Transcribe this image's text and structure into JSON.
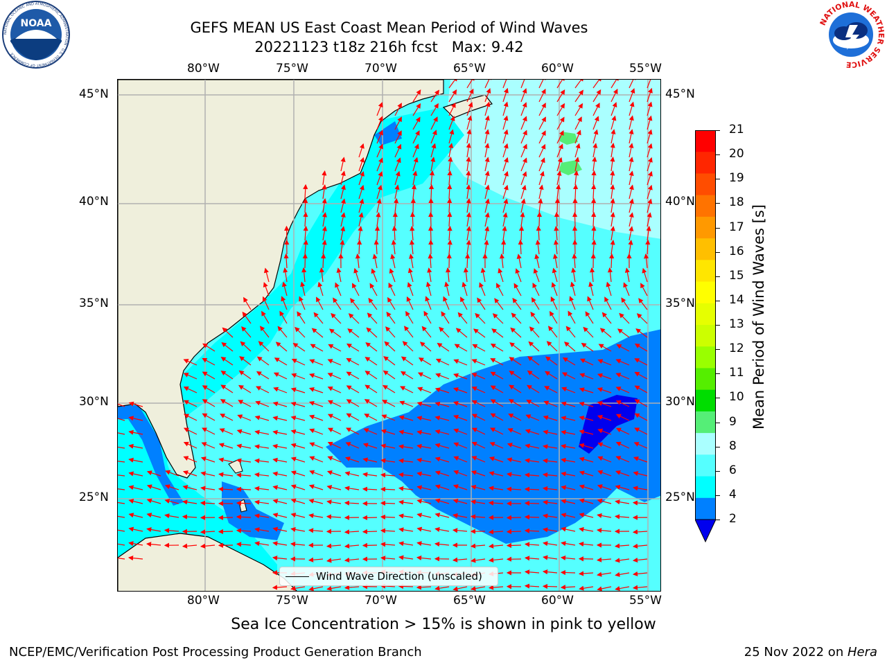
{
  "header": {
    "title_line1": "GEFS MEAN US East Coast Mean Period of Wind Waves",
    "title_line2": "20221123 t18z 216h fcst   Max: 9.42"
  },
  "logos": {
    "left": "NOAA",
    "left_ring_text": "NATIONAL OCEANIC AND ATMOSPHERIC ADMINISTRATION · U.S. DEPARTMENT OF COMMERCE",
    "right_ring_text": "NATIONAL WEATHER SERVICE"
  },
  "map": {
    "lon_labels": [
      "80°W",
      "75°W",
      "70°W",
      "65°W",
      "60°W",
      "55°W"
    ],
    "lat_labels": [
      "45°N",
      "40°N",
      "35°N",
      "30°N",
      "25°N"
    ],
    "legend_label": "Wind Wave Direction (unscaled)",
    "colors": {
      "land": "#efefdc",
      "ocean_4_6": "#00ffff",
      "ocean_6_8": "#55ffff",
      "ocean_8_9": "#aaffff",
      "ocean_2_4": "#0080ff",
      "ocean_lt2": "#0000ee",
      "ocean_9_10": "#55ee77",
      "arrow": "#ff0000",
      "grid": "#b0b0b0"
    }
  },
  "colorbar": {
    "label": "Mean Period of Wind Waves [s]",
    "ticks": [
      "21",
      "20",
      "19",
      "18",
      "17",
      "16",
      "15",
      "14",
      "13",
      "12",
      "11",
      "10",
      "9",
      "8",
      "6",
      "4",
      "2"
    ],
    "colors_top_to_bottom": [
      "#ff0000",
      "#ff2600",
      "#ff4d00",
      "#ff7300",
      "#ff9900",
      "#ffbf00",
      "#ffe600",
      "#ffff00",
      "#e6ff00",
      "#ccff00",
      "#99ff00",
      "#55ee00",
      "#00dd00",
      "#55ee77",
      "#aaffff",
      "#55ffff",
      "#00ffff",
      "#0080ff"
    ],
    "extend_color": "#0000ee"
  },
  "footer": {
    "note": "Sea Ice Concentration > 15% is shown in pink to yellow",
    "left": "NCEP/EMC/Verification Post Processing Product Generation Branch",
    "right_date": "25 Nov 2022 on ",
    "right_host": "Hera"
  }
}
